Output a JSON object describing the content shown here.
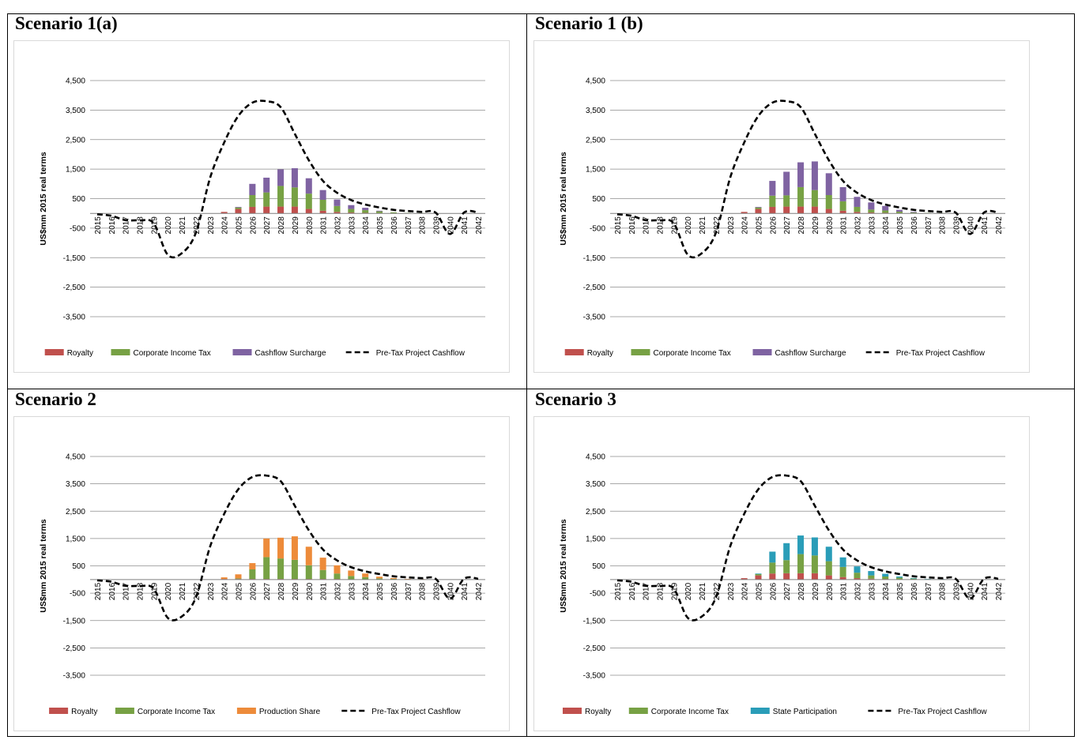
{
  "colors": {
    "royalty": "#C0504D",
    "corporate_income_tax": "#77A144",
    "cashflow_surcharge": "#7F63A2",
    "production_share": "#ED8B3A",
    "state_participation": "#2A9DB8",
    "cashflow_line": "#000000",
    "gridline": "#8c8c8c"
  },
  "chart_data": [
    {
      "panel_title": "Scenario 1(a)",
      "type": "bar",
      "stacked": true,
      "ylabel": "US$mm 2015 real terms",
      "ylim": [
        -3500,
        4500
      ],
      "yticks": [
        "4,500",
        "3,500",
        "2,500",
        "1,500",
        "500",
        "-500",
        "-1,500",
        "-2,500",
        "-3,500"
      ],
      "categories": [
        "2015",
        "2016",
        "2017",
        "2018",
        "2019",
        "2020",
        "2021",
        "2022",
        "2023",
        "2024",
        "2025",
        "2026",
        "2027",
        "2028",
        "2029",
        "2030",
        "2031",
        "2032",
        "2033",
        "2034",
        "2035",
        "2036",
        "2037",
        "2038",
        "2039",
        "2040",
        "2041",
        "2042"
      ],
      "series": [
        {
          "name": "Royalty",
          "color": "#C0504D",
          "values": [
            0,
            0,
            0,
            0,
            0,
            0,
            0,
            0,
            0,
            50,
            150,
            220,
            230,
            230,
            230,
            150,
            90,
            50,
            30,
            20,
            10,
            5,
            0,
            0,
            0,
            0,
            0,
            0
          ]
        },
        {
          "name": "Corporate Income Tax",
          "color": "#77A144",
          "values": [
            0,
            0,
            0,
            0,
            0,
            0,
            0,
            0,
            0,
            0,
            50,
            400,
            480,
            700,
            650,
            520,
            370,
            200,
            120,
            90,
            60,
            30,
            15,
            10,
            5,
            0,
            0,
            0
          ]
        },
        {
          "name": "Cashflow Surcharge",
          "color": "#7F63A2",
          "values": [
            0,
            0,
            0,
            0,
            0,
            0,
            0,
            0,
            0,
            0,
            20,
            380,
            500,
            560,
            650,
            520,
            330,
            220,
            130,
            80,
            20,
            0,
            0,
            0,
            0,
            0,
            0,
            0
          ]
        }
      ],
      "line": {
        "name": "Pre-Tax Project Cashflow",
        "values": [
          -30,
          -80,
          -230,
          -240,
          -330,
          -1400,
          -1350,
          -650,
          1200,
          2400,
          3300,
          3750,
          3800,
          3600,
          2700,
          1800,
          1100,
          700,
          450,
          300,
          200,
          120,
          80,
          50,
          20,
          -700,
          30,
          30
        ]
      },
      "legend": [
        "Royalty",
        "Corporate Income Tax",
        "Cashflow Surcharge",
        "Pre-Tax Project Cashflow"
      ]
    },
    {
      "panel_title": "Scenario 1 (b)",
      "type": "bar",
      "stacked": true,
      "ylabel": "US$mm 2015 real terms",
      "ylim": [
        -3500,
        4500
      ],
      "yticks": [
        "4,500",
        "3,500",
        "2,500",
        "1,500",
        "500",
        "-500",
        "-1,500",
        "-2,500",
        "-3,500"
      ],
      "categories": [
        "2015",
        "2016",
        "2017",
        "2018",
        "2019",
        "2020",
        "2021",
        "2022",
        "2023",
        "2024",
        "2025",
        "2026",
        "2027",
        "2028",
        "2029",
        "2030",
        "2031",
        "2032",
        "2033",
        "2034",
        "2035",
        "2036",
        "2037",
        "2038",
        "2039",
        "2040",
        "2041",
        "2042"
      ],
      "series": [
        {
          "name": "Royalty",
          "color": "#C0504D",
          "values": [
            0,
            0,
            0,
            0,
            0,
            0,
            0,
            0,
            0,
            50,
            150,
            220,
            230,
            230,
            230,
            150,
            90,
            50,
            30,
            20,
            10,
            5,
            0,
            0,
            0,
            0,
            0,
            0
          ]
        },
        {
          "name": "Corporate Income Tax",
          "color": "#77A144",
          "values": [
            0,
            0,
            0,
            0,
            0,
            0,
            0,
            0,
            0,
            0,
            50,
            380,
            380,
            660,
            560,
            470,
            320,
            170,
            100,
            80,
            50,
            25,
            15,
            10,
            5,
            0,
            0,
            0
          ]
        },
        {
          "name": "Cashflow Surcharge",
          "color": "#7F63A2",
          "values": [
            0,
            0,
            0,
            0,
            0,
            0,
            0,
            0,
            0,
            0,
            20,
            500,
            800,
            840,
            970,
            740,
            480,
            340,
            240,
            150,
            60,
            20,
            0,
            0,
            0,
            0,
            0,
            0
          ]
        }
      ],
      "line": {
        "name": "Pre-Tax Project Cashflow",
        "values": [
          -30,
          -80,
          -230,
          -240,
          -330,
          -1400,
          -1350,
          -650,
          1200,
          2400,
          3300,
          3750,
          3800,
          3600,
          2700,
          1800,
          1100,
          700,
          450,
          300,
          200,
          120,
          80,
          50,
          20,
          -700,
          30,
          30
        ]
      },
      "legend": [
        "Royalty",
        "Corporate Income Tax",
        "Cashflow Surcharge",
        "Pre-Tax Project Cashflow"
      ]
    },
    {
      "panel_title": "Scenario 2",
      "type": "bar",
      "stacked": true,
      "ylabel": "US$mm 2015 real terms",
      "ylim": [
        -3500,
        4500
      ],
      "yticks": [
        "4,500",
        "3,500",
        "2,500",
        "1,500",
        "500",
        "-500",
        "-1,500",
        "-2,500",
        "-3,500"
      ],
      "categories": [
        "2015",
        "2016",
        "2017",
        "2018",
        "2019",
        "2020",
        "2021",
        "2022",
        "2023",
        "2024",
        "2025",
        "2026",
        "2027",
        "2028",
        "2029",
        "2030",
        "2031",
        "2032",
        "2033",
        "2034",
        "2035",
        "2036",
        "2037",
        "2038",
        "2039",
        "2040",
        "2041",
        "2042"
      ],
      "series": [
        {
          "name": "Royalty",
          "color": "#C0504D",
          "values": [
            0,
            0,
            0,
            0,
            0,
            0,
            0,
            0,
            0,
            20,
            20,
            20,
            20,
            20,
            20,
            20,
            20,
            20,
            10,
            10,
            5,
            5,
            0,
            0,
            0,
            0,
            0,
            0
          ]
        },
        {
          "name": "Corporate Income Tax",
          "color": "#77A144",
          "values": [
            0,
            0,
            0,
            0,
            0,
            0,
            0,
            0,
            0,
            0,
            20,
            350,
            800,
            750,
            700,
            500,
            330,
            200,
            120,
            80,
            40,
            20,
            10,
            5,
            0,
            0,
            0,
            0
          ]
        },
        {
          "name": "Production Share",
          "color": "#ED8B3A",
          "values": [
            0,
            0,
            0,
            0,
            0,
            0,
            0,
            0,
            0,
            60,
            150,
            230,
            680,
            760,
            860,
            680,
            450,
            300,
            200,
            130,
            60,
            30,
            15,
            10,
            5,
            0,
            0,
            0
          ]
        }
      ],
      "line": {
        "name": "Pre-Tax Project Cashflow",
        "values": [
          -30,
          -80,
          -230,
          -240,
          -330,
          -1400,
          -1350,
          -650,
          1200,
          2400,
          3300,
          3750,
          3800,
          3600,
          2700,
          1800,
          1100,
          700,
          450,
          300,
          200,
          120,
          80,
          50,
          20,
          -700,
          30,
          30
        ]
      },
      "legend": [
        "Royalty",
        "Corporate Income Tax",
        "Production Share",
        "Pre-Tax Project Cashflow"
      ]
    },
    {
      "panel_title": "Scenario 3",
      "type": "bar",
      "stacked": true,
      "ylabel": "US$mm 2015 real terms",
      "ylim": [
        -3500,
        4500
      ],
      "yticks": [
        "4,500",
        "3,500",
        "2,500",
        "1,500",
        "500",
        "-500",
        "-1,500",
        "-2,500",
        "-3,500"
      ],
      "categories": [
        "2015",
        "2016",
        "2017",
        "2018",
        "2019",
        "2020",
        "2021",
        "2022",
        "2023",
        "2024",
        "2025",
        "2026",
        "2027",
        "2028",
        "2029",
        "2030",
        "2031",
        "2032",
        "2033",
        "2034",
        "2035",
        "2036",
        "2037",
        "2038",
        "2039",
        "2040",
        "2041",
        "2042"
      ],
      "series": [
        {
          "name": "Royalty",
          "color": "#C0504D",
          "values": [
            0,
            0,
            0,
            0,
            0,
            0,
            0,
            0,
            0,
            50,
            150,
            220,
            230,
            230,
            230,
            150,
            90,
            50,
            30,
            20,
            10,
            5,
            0,
            0,
            0,
            0,
            0,
            0
          ]
        },
        {
          "name": "Corporate Income Tax",
          "color": "#77A144",
          "values": [
            0,
            0,
            0,
            0,
            0,
            0,
            0,
            0,
            0,
            0,
            50,
            400,
            480,
            700,
            650,
            520,
            370,
            200,
            120,
            90,
            60,
            30,
            15,
            10,
            5,
            0,
            0,
            0
          ]
        },
        {
          "name": "State Participation",
          "color": "#2A9DB8",
          "values": [
            0,
            0,
            0,
            0,
            0,
            0,
            0,
            0,
            0,
            0,
            20,
            400,
            620,
            680,
            660,
            530,
            350,
            230,
            160,
            100,
            40,
            20,
            10,
            5,
            0,
            0,
            0,
            0
          ]
        }
      ],
      "line": {
        "name": "Pre-Tax Project Cashflow",
        "values": [
          -30,
          -80,
          -230,
          -240,
          -330,
          -1400,
          -1350,
          -650,
          1200,
          2400,
          3300,
          3750,
          3800,
          3600,
          2700,
          1800,
          1100,
          700,
          450,
          300,
          200,
          120,
          80,
          50,
          20,
          -700,
          30,
          30
        ]
      },
      "legend": [
        "Royalty",
        "Corporate Income Tax",
        "State Participation",
        "Pre-Tax Project Cashflow"
      ]
    }
  ]
}
